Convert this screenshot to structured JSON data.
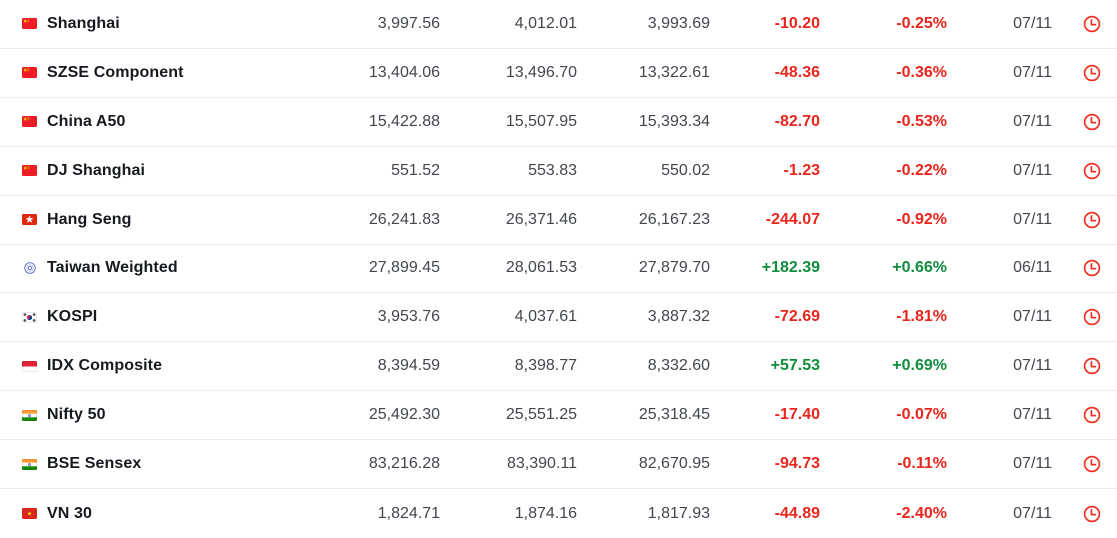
{
  "colors": {
    "negative": "#e9251c",
    "positive": "#118d3e",
    "clock": "#ee3124",
    "divider": "#ebedf0"
  },
  "table": {
    "row_status_icon": "clock-icon",
    "rows": [
      {
        "name": "Shanghai",
        "flag": "china",
        "last": "3,997.56",
        "high": "4,012.01",
        "low": "3,993.69",
        "change": "-10.20",
        "change_pct": "-0.25%",
        "date": "07/11",
        "direction": "down"
      },
      {
        "name": "SZSE Component",
        "flag": "china",
        "last": "13,404.06",
        "high": "13,496.70",
        "low": "13,322.61",
        "change": "-48.36",
        "change_pct": "-0.36%",
        "date": "07/11",
        "direction": "down"
      },
      {
        "name": "China A50",
        "flag": "china",
        "last": "15,422.88",
        "high": "15,507.95",
        "low": "15,393.34",
        "change": "-82.70",
        "change_pct": "-0.53%",
        "date": "07/11",
        "direction": "down"
      },
      {
        "name": "DJ Shanghai",
        "flag": "china",
        "last": "551.52",
        "high": "553.83",
        "low": "550.02",
        "change": "-1.23",
        "change_pct": "-0.22%",
        "date": "07/11",
        "direction": "down"
      },
      {
        "name": "Hang Seng",
        "flag": "hongkong",
        "last": "26,241.83",
        "high": "26,371.46",
        "low": "26,167.23",
        "change": "-244.07",
        "change_pct": "-0.92%",
        "date": "07/11",
        "direction": "down"
      },
      {
        "name": "Taiwan Weighted",
        "flag": "taiwan",
        "last": "27,899.45",
        "high": "28,061.53",
        "low": "27,879.70",
        "change": "+182.39",
        "change_pct": "+0.66%",
        "date": "06/11",
        "direction": "up"
      },
      {
        "name": "KOSPI",
        "flag": "southkorea",
        "last": "3,953.76",
        "high": "4,037.61",
        "low": "3,887.32",
        "change": "-72.69",
        "change_pct": "-1.81%",
        "date": "07/11",
        "direction": "down"
      },
      {
        "name": "IDX Composite",
        "flag": "indonesia",
        "last": "8,394.59",
        "high": "8,398.77",
        "low": "8,332.60",
        "change": "+57.53",
        "change_pct": "+0.69%",
        "date": "07/11",
        "direction": "up"
      },
      {
        "name": "Nifty 50",
        "flag": "india",
        "last": "25,492.30",
        "high": "25,551.25",
        "low": "25,318.45",
        "change": "-17.40",
        "change_pct": "-0.07%",
        "date": "07/11",
        "direction": "down"
      },
      {
        "name": "BSE Sensex",
        "flag": "india",
        "last": "83,216.28",
        "high": "83,390.11",
        "low": "82,670.95",
        "change": "-94.73",
        "change_pct": "-0.11%",
        "date": "07/11",
        "direction": "down"
      },
      {
        "name": "VN 30",
        "flag": "vietnam",
        "last": "1,824.71",
        "high": "1,874.16",
        "low": "1,817.93",
        "change": "-44.89",
        "change_pct": "-2.40%",
        "date": "07/11",
        "direction": "down"
      }
    ]
  }
}
